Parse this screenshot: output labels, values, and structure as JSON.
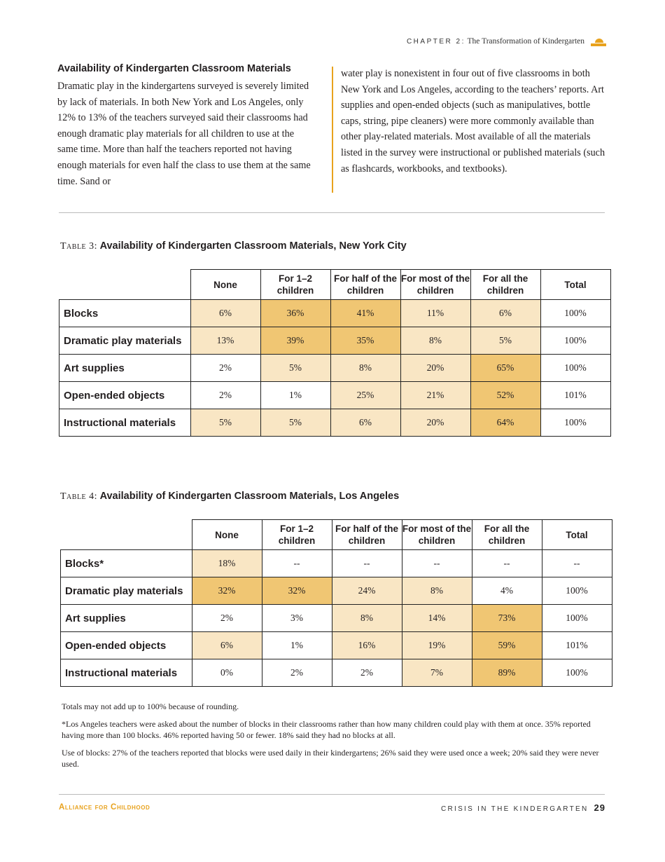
{
  "header": {
    "chapter_label": "CHAPTER 2:",
    "chapter_title": "The Transformation of Kindergarten",
    "logo_color": "#e8a21d"
  },
  "section": {
    "heading": "Availability of Kindergarten Classroom Materials",
    "col1": "Dramatic play in the kindergartens surveyed is severely limited by lack of materials. In both New York and Los Angeles, only 12% to 13% of the teachers surveyed said their classrooms had enough dramatic play materials for all children to use at the same time. More than half the teachers reported not having enough materials for even half the class to use them at the same time. Sand or",
    "col2": "water play is nonexistent in four out of five classrooms in both New York and Los Angeles, according to the teachers’ reports. Art supplies and open-ended objects (such as manipulatives, bottle caps, string, pipe cleaners) were more commonly available than other play-related materials. Most available of all the materials listed in the survey were instructional or published materials (such as flashcards, workbooks, and textbooks)."
  },
  "colors": {
    "light": "#f9e6c4",
    "dark": "#f0c673",
    "accent": "#e8a21d"
  },
  "columns": [
    "None",
    "For 1–2 children",
    "For half of the children",
    "For most of the children",
    "For all the children",
    "Total"
  ],
  "tables": [
    {
      "label": "Table 3:",
      "title": "Availability of Kindergarten Classroom Materials, New York City",
      "rows": [
        {
          "label": "Blocks",
          "cells": [
            "6%",
            "36%",
            "41%",
            "11%",
            "6%",
            "100%"
          ],
          "shade": [
            1,
            2,
            2,
            1,
            1,
            0
          ]
        },
        {
          "label": "Dramatic play materials",
          "cells": [
            "13%",
            "39%",
            "35%",
            "8%",
            "5%",
            "100%"
          ],
          "shade": [
            1,
            2,
            2,
            1,
            1,
            0
          ]
        },
        {
          "label": "Art supplies",
          "cells": [
            "2%",
            "5%",
            "8%",
            "20%",
            "65%",
            "100%"
          ],
          "shade": [
            0,
            1,
            1,
            1,
            2,
            0
          ]
        },
        {
          "label": "Open-ended objects",
          "cells": [
            "2%",
            "1%",
            "25%",
            "21%",
            "52%",
            "101%"
          ],
          "shade": [
            0,
            0,
            1,
            1,
            2,
            0
          ]
        },
        {
          "label": "Instructional materials",
          "cells": [
            "5%",
            "5%",
            "6%",
            "20%",
            "64%",
            "100%"
          ],
          "shade": [
            1,
            1,
            1,
            1,
            2,
            0
          ]
        }
      ]
    },
    {
      "label": "Table 4:",
      "title": "Availability of Kindergarten Classroom Materials, Los Angeles",
      "rows": [
        {
          "label": "Blocks*",
          "cells": [
            "18%",
            "--",
            "--",
            "--",
            "--",
            "--"
          ],
          "shade": [
            1,
            0,
            0,
            0,
            0,
            0
          ]
        },
        {
          "label": "Dramatic play materials",
          "cells": [
            "32%",
            "32%",
            "24%",
            "8%",
            "4%",
            "100%"
          ],
          "shade": [
            2,
            2,
            1,
            1,
            0,
            0
          ]
        },
        {
          "label": "Art supplies",
          "cells": [
            "2%",
            "3%",
            "8%",
            "14%",
            "73%",
            "100%"
          ],
          "shade": [
            0,
            0,
            1,
            1,
            2,
            0
          ]
        },
        {
          "label": "Open-ended objects",
          "cells": [
            "6%",
            "1%",
            "16%",
            "19%",
            "59%",
            "101%"
          ],
          "shade": [
            1,
            0,
            1,
            1,
            2,
            0
          ]
        },
        {
          "label": "Instructional materials",
          "cells": [
            "0%",
            "2%",
            "2%",
            "7%",
            "89%",
            "100%"
          ],
          "shade": [
            0,
            0,
            0,
            1,
            2,
            0
          ]
        }
      ]
    }
  ],
  "notes": [
    "Totals may not add up to 100% because of rounding.",
    "*Los Angeles teachers were asked about the number of blocks in their classrooms rather than how many children could play with them at once. 35% reported having more than 100 blocks. 46% reported having 50 or fewer. 18% said they had no blocks at all.",
    "Use of blocks: 27% of the teachers reported that blocks were used daily in their kindergartens; 26% said they were used once a week; 20% said they were never used."
  ],
  "footer": {
    "left": "Alliance for Childhood",
    "right": "CRISIS IN THE KINDERGARTEN",
    "page": "29"
  }
}
